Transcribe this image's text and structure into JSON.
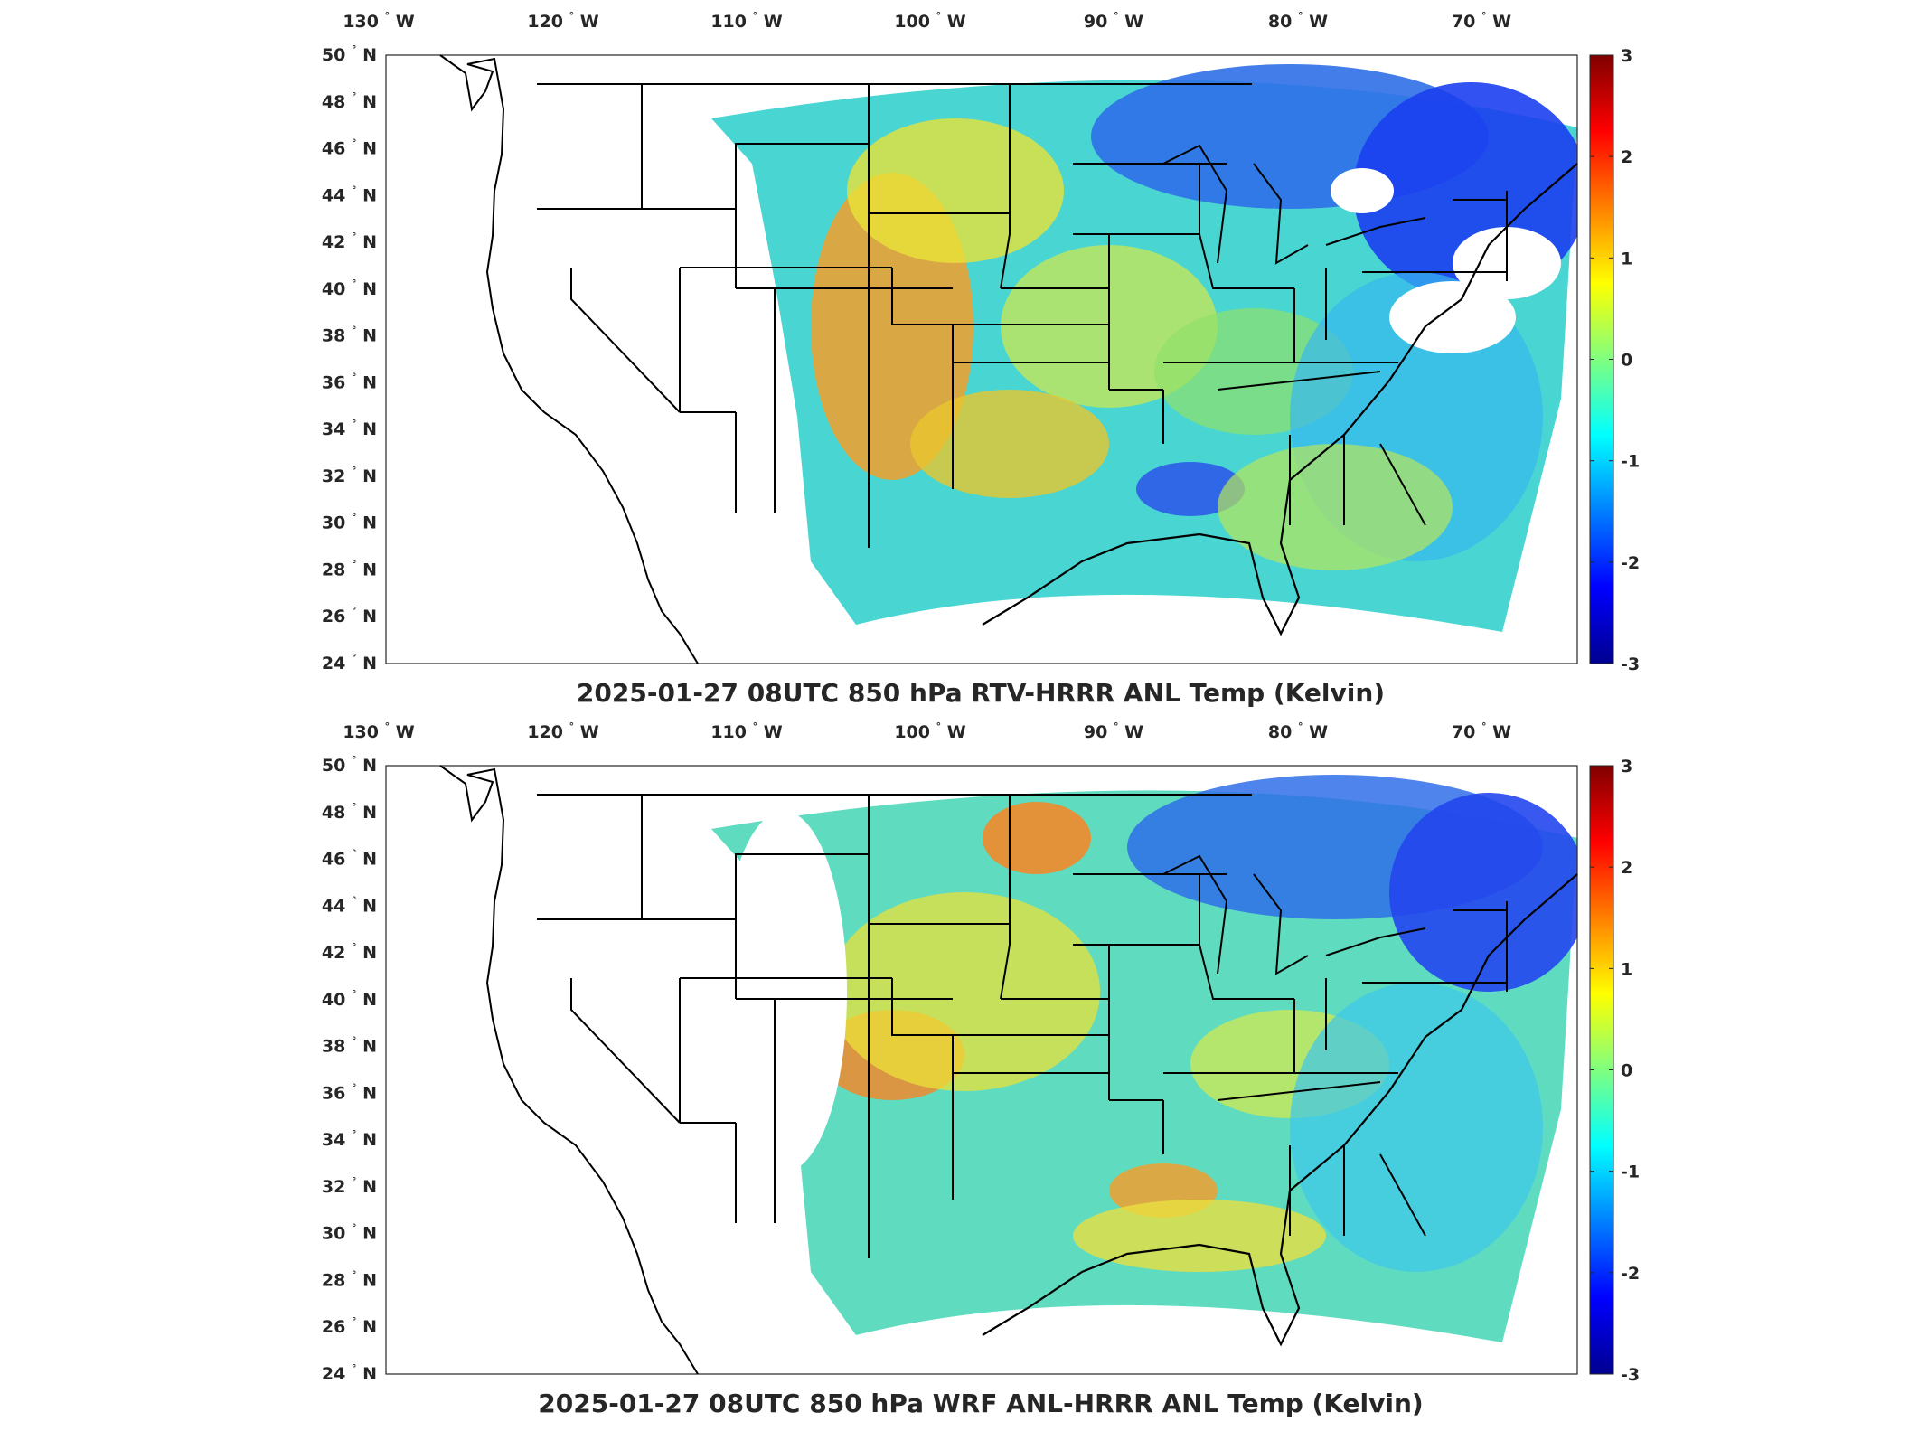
{
  "panels": [
    {
      "id": "rtv",
      "title": "2025-01-27 08UTC 850 hPa RTV-HRRR ANL Temp (Kelvin)",
      "lon_ticks": [
        "130",
        "120",
        "110",
        "100",
        "90",
        "80",
        "70"
      ],
      "lon_suffix": "W",
      "lat_ticks": [
        "50",
        "48",
        "46",
        "44",
        "42",
        "40",
        "38",
        "36",
        "34",
        "32",
        "30",
        "28",
        "26",
        "24"
      ],
      "lat_suffix": "N",
      "colorbar_ticks": [
        "3",
        "2",
        "1",
        "0",
        "-1",
        "-2",
        "-3"
      ],
      "missing_data_west_of": "Rocky Mountains (white)"
    },
    {
      "id": "wrf",
      "title": "2025-01-27 08UTC 850 hPa WRF ANL-HRRR ANL Temp (Kelvin)",
      "lon_ticks": [
        "130",
        "120",
        "110",
        "100",
        "90",
        "80",
        "70"
      ],
      "lon_suffix": "W",
      "lat_ticks": [
        "50",
        "48",
        "46",
        "44",
        "42",
        "40",
        "38",
        "36",
        "34",
        "32",
        "30",
        "28",
        "26",
        "24"
      ],
      "lat_suffix": "N",
      "colorbar_ticks": [
        "3",
        "2",
        "1",
        "0",
        "-1",
        "-2",
        "-3"
      ],
      "missing_data_west_of": "Rocky Mountains (white)"
    }
  ],
  "degree_symbol": "°",
  "colormap": "jet",
  "colorbar_range": [
    -3,
    3
  ],
  "colors": {
    "jet_stops": [
      "#00008f",
      "#0000ff",
      "#00ffff",
      "#ffff00",
      "#ff0000",
      "#800000"
    ],
    "coastline": "#000000",
    "frame": "#262626"
  }
}
